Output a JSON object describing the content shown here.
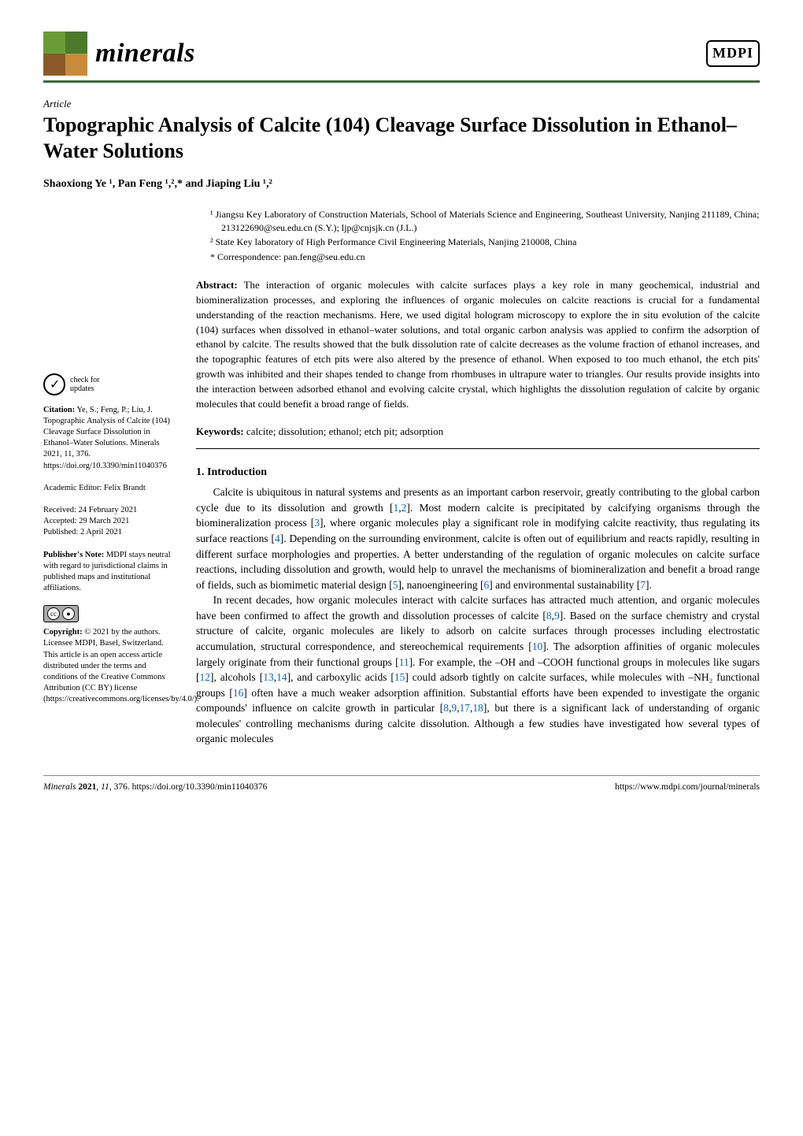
{
  "journal": {
    "name": "minerals",
    "logo_colors": [
      "#6b9b37",
      "#4a7a2a",
      "#8a5a2a",
      "#c98a3a"
    ]
  },
  "publisher_logo": "MDPI",
  "article_type": "Article",
  "title": "Topographic Analysis of Calcite (104) Cleavage Surface Dissolution in Ethanol–Water Solutions",
  "authors_line": "Shaoxiong Ye ¹, Pan Feng ¹,²,* and Jiaping Liu ¹,²",
  "affiliations": {
    "a1": "¹   Jiangsu Key Laboratory of Construction Materials, School of Materials Science and Engineering, Southeast University, Nanjing 211189, China; 213122690@seu.edu.cn (S.Y.); ljp@cnjsjk.cn (J.L.)",
    "a2": "²   State Key laboratory of High Performance Civil Engineering Materials, Nanjing 210008, China",
    "corr": "*   Correspondence: pan.feng@seu.edu.cn"
  },
  "abstract_label": "Abstract:",
  "abstract_text": " The interaction of organic molecules with calcite surfaces plays a key role in many geochemical, industrial and biomineralization processes, and exploring the influences of organic molecules on calcite reactions is crucial for a fundamental understanding of the reaction mechanisms. Here, we used digital hologram microscopy to explore the in situ evolution of the calcite (104) surfaces when dissolved in ethanol–water solutions, and total organic carbon analysis was applied to confirm the adsorption of ethanol by calcite. The results showed that the bulk dissolution rate of calcite decreases as the volume fraction of ethanol increases, and the topographic features of etch pits were also altered by the presence of ethanol. When exposed to too much ethanol, the etch pits' growth was inhibited and their shapes tended to change from rhombuses in ultrapure water to triangles. Our results provide insights into the interaction between adsorbed ethanol and evolving calcite crystal, which highlights the dissolution regulation of calcite by organic molecules that could benefit a broad range of fields.",
  "keywords_label": "Keywords:",
  "keywords_text": " calcite; dissolution; ethanol; etch pit; adsorption",
  "section1_heading": "1. Introduction",
  "body": {
    "p1a": "Calcite is ubiquitous in natural systems and presents as an important carbon reservoir, greatly contributing to the global carbon cycle due to its dissolution and growth [",
    "p1_r1": "1",
    "p1_c1": ",",
    "p1_r2": "2",
    "p1b": "]. Most modern calcite is precipitated by calcifying organisms through the biomineralization process [",
    "p1_r3": "3",
    "p1c": "], where organic molecules play a significant role in modifying calcite reactivity, thus regulating its surface reactions [",
    "p1_r4": "4",
    "p1d": "]. Depending on the surrounding environment, calcite is often out of equilibrium and reacts rapidly, resulting in different surface morphologies and properties. A better understanding of the regulation of organic molecules on calcite surface reactions, including dissolution and growth, would help to unravel the mechanisms of biomineralization and benefit a broad range of fields, such as biomimetic material design [",
    "p1_r5": "5",
    "p1e": "], nanoengineering [",
    "p1_r6": "6",
    "p1f": "] and environmental sustainability [",
    "p1_r7": "7",
    "p1g": "].",
    "p2a": "In recent decades, how organic molecules interact with calcite surfaces has attracted much attention, and organic molecules have been confirmed to affect the growth and dissolution processes of calcite [",
    "p2_r8": "8",
    "p2_c1": ",",
    "p2_r9": "9",
    "p2b": "]. Based on the surface chemistry and crystal structure of calcite, organic molecules are likely to adsorb on calcite surfaces through processes including electrostatic accumulation, structural correspondence, and stereochemical requirements [",
    "p2_r10": "10",
    "p2c": "]. The adsorption affinities of organic molecules largely originate from their functional groups [",
    "p2_r11": "11",
    "p2d": "]. For example, the –OH and –COOH functional groups in molecules like sugars [",
    "p2_r12": "12",
    "p2e": "], alcohols [",
    "p2_r13": "13",
    "p2_c2": ",",
    "p2_r14": "14",
    "p2f": "], and carboxylic acids [",
    "p2_r15": "15",
    "p2g": "] could adsorb tightly on calcite surfaces, while molecules with –NH₂ functional groups [",
    "p2_r16": "16",
    "p2h": "] often have a much weaker adsorption affinition. Substantial efforts have been expended to investigate the organic compounds' influence on calcite growth in particular [",
    "p2_r8b": "8",
    "p2_c3": ",",
    "p2_r9b": "9",
    "p2_c4": ",",
    "p2_r17": "17",
    "p2_c5": ",",
    "p2_r18": "18",
    "p2i": "], but there is a significant lack of understanding of organic molecules' controlling mechanisms during calcite dissolution. Although a few studies have investigated how several types of organic molecules"
  },
  "sidebar": {
    "check_updates": "check for\nupdates",
    "citation_label": "Citation:",
    "citation_text": " Ye, S.; Feng, P.; Liu, J. Topographic Analysis of Calcite (104) Cleavage Surface Dissolution in Ethanol–Water Solutions. Minerals 2021, 11, 376. https://doi.org/10.3390/min11040376",
    "editor": "Academic Editor: Felix Brandt",
    "received": "Received: 24 February 2021",
    "accepted": "Accepted: 29 March 2021",
    "published": "Published: 2 April 2021",
    "pub_note_label": "Publisher's Note:",
    "pub_note_text": " MDPI stays neutral with regard to jurisdictional claims in published maps and institutional affiliations.",
    "copyright_label": "Copyright:",
    "copyright_text": " © 2021 by the authors. Licensee MDPI, Basel, Switzerland. This article is an open access article distributed under the terms and conditions of the Creative Commons Attribution (CC BY) license (https://creativecommons.org/licenses/by/4.0/)."
  },
  "footer": {
    "left": "Minerals 2021, 11, 376. https://doi.org/10.3390/min11040376",
    "right": "https://www.mdpi.com/journal/minerals"
  }
}
